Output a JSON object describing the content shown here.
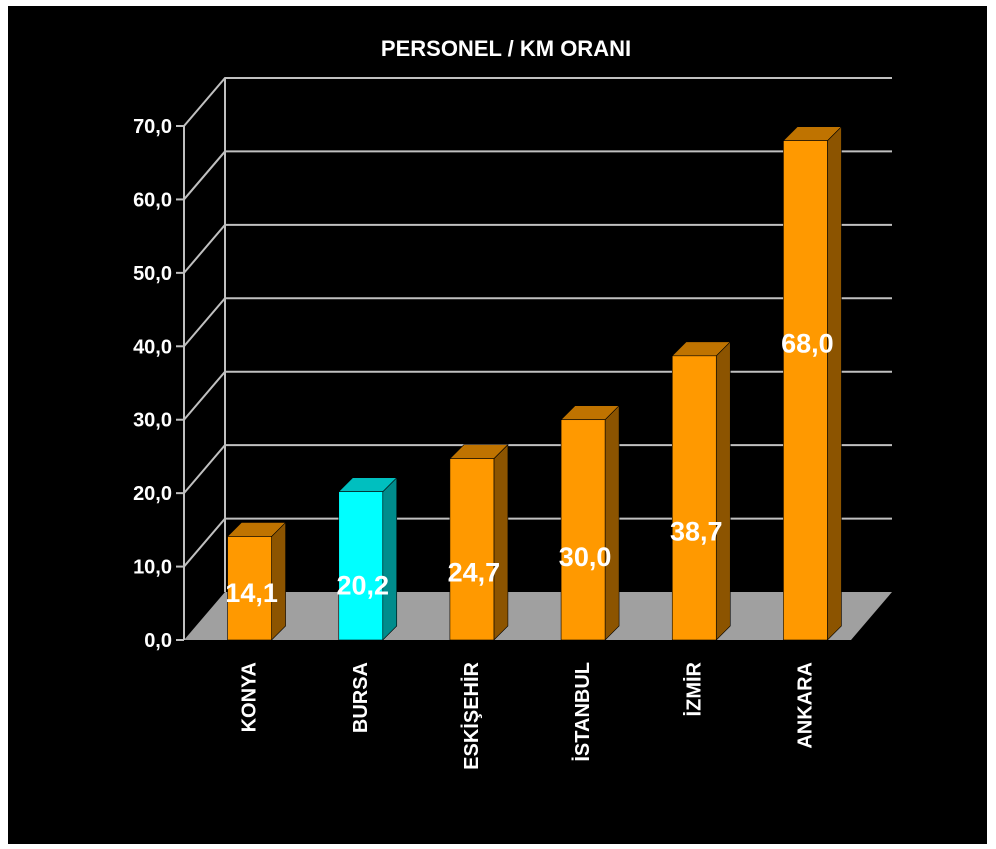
{
  "chart_data": {
    "type": "bar",
    "title": "PERSONEL / KM ORANI",
    "categories": [
      "KONYA",
      "BURSA",
      "ESKİŞEHİR",
      "İSTANBUL",
      "İZMİR",
      "ANKARA"
    ],
    "values": [
      14.1,
      20.2,
      24.7,
      30.0,
      38.7,
      68.0
    ],
    "value_labels": [
      "14,1",
      "20,2",
      "24,7",
      "30,0",
      "38,7",
      "68,0"
    ],
    "bar_colors": [
      "#ff9900",
      "#00ffff",
      "#ff9900",
      "#ff9900",
      "#ff9900",
      "#ff9900"
    ],
    "yticks": [
      "0,0",
      "10,0",
      "20,0",
      "30,0",
      "40,0",
      "50,0",
      "60,0",
      "70,0"
    ],
    "ylim": [
      0,
      70
    ],
    "xlabel": "",
    "ylabel": "",
    "grid": true,
    "style": "3d-bar",
    "colors": {
      "background": "#000000",
      "floor": "#a0a0a0",
      "gridline": "#c0c0c0",
      "text": "#ffffff"
    }
  }
}
